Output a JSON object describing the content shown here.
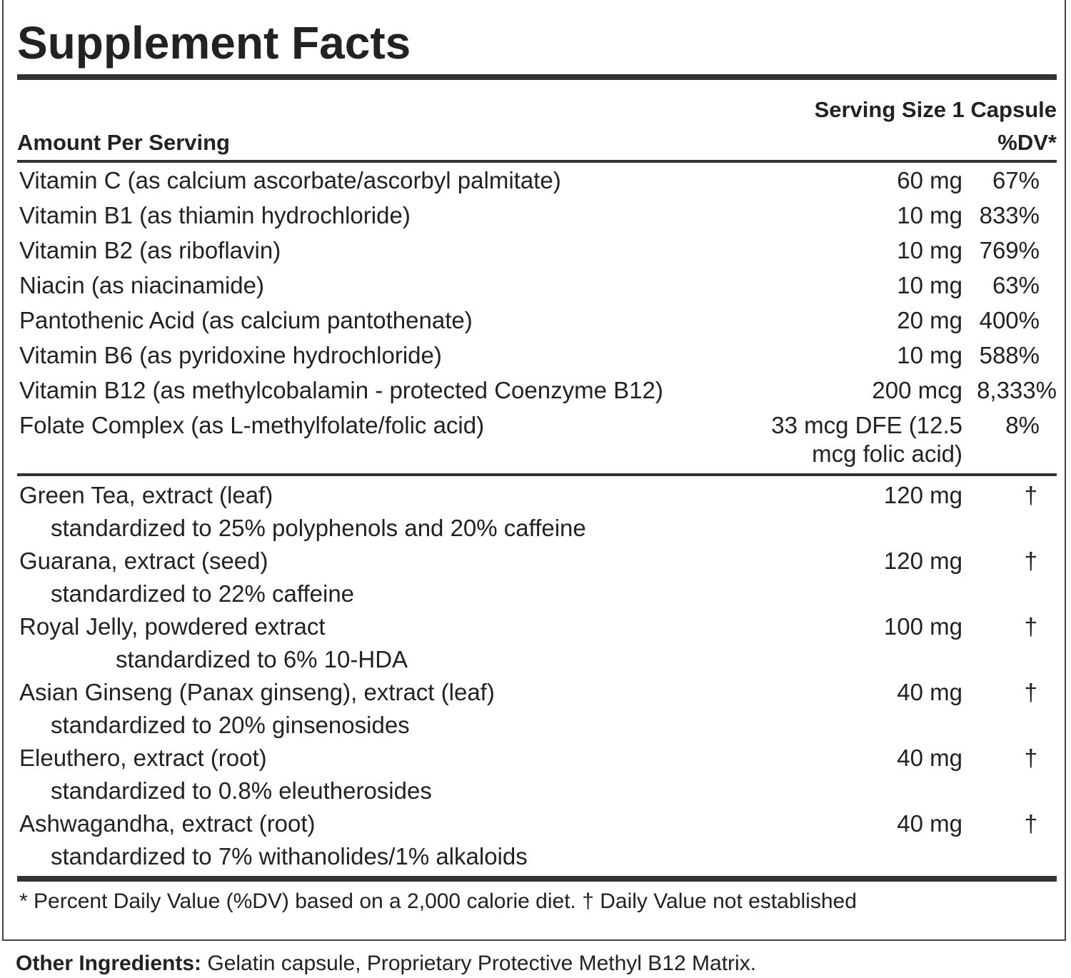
{
  "title": "Supplement Facts",
  "serving_size": "Serving Size 1 Capsule",
  "amount_per_serving": "Amount Per Serving",
  "dv_header": "%DV*",
  "vitamins": [
    {
      "name": "Vitamin C (as calcium ascorbate/ascorbyl palmitate)",
      "amount": "60 mg",
      "dv": "67%"
    },
    {
      "name": "Vitamin B1 (as thiamin hydrochloride)",
      "amount": "10 mg",
      "dv": "833%"
    },
    {
      "name": "Vitamin B2 (as riboflavin)",
      "amount": "10 mg",
      "dv": "769%"
    },
    {
      "name": "Niacin (as niacinamide)",
      "amount": "10 mg",
      "dv": "63%"
    },
    {
      "name": "Pantothenic Acid (as calcium pantothenate)",
      "amount": "20 mg",
      "dv": "400%"
    },
    {
      "name": "Vitamin B6 (as pyridoxine hydrochloride)",
      "amount": "10 mg",
      "dv": "588%"
    },
    {
      "name": "Vitamin B12 (as methylcobalamin - protected Coenzyme B12)",
      "amount": "200 mcg",
      "dv": "8,333%"
    },
    {
      "name": "Folate Complex (as L-methylfolate/folic acid)",
      "amount": "33 mcg DFE (12.5 mcg folic acid)",
      "dv": "8%"
    }
  ],
  "botanicals": [
    {
      "name": "Green Tea, extract (leaf)",
      "detail": "standardized to 25% polyphenols and 20% caffeine",
      "amount": "120 mg",
      "dv": "†"
    },
    {
      "name": "Guarana, extract (seed)",
      "detail": "standardized to 22% caffeine",
      "amount": "120 mg",
      "dv": "†"
    },
    {
      "name": "Royal Jelly, powdered extract",
      "detail": "standardized to 6% 10-HDA",
      "amount": "100 mg",
      "dv": "†"
    },
    {
      "name": "Asian Ginseng (Panax ginseng), extract (leaf)",
      "detail": "standardized to 20% ginsenosides",
      "amount": "40 mg",
      "dv": "†"
    },
    {
      "name": "Eleuthero, extract (root)",
      "detail": "standardized to 0.8% eleutherosides",
      "amount": "40 mg",
      "dv": "†"
    },
    {
      "name": "Ashwagandha, extract (root)",
      "detail": "standardized to 7% withanolides/1% alkaloids",
      "amount": "40 mg",
      "dv": "†"
    }
  ],
  "footnote": "* Percent Daily Value (%DV) based on a 2,000 calorie diet. † Daily Value not established",
  "other_ingredients": {
    "label": "Other Ingredients:",
    "text": "Gelatin capsule, Proprietary Protective Methyl B12 Matrix."
  }
}
